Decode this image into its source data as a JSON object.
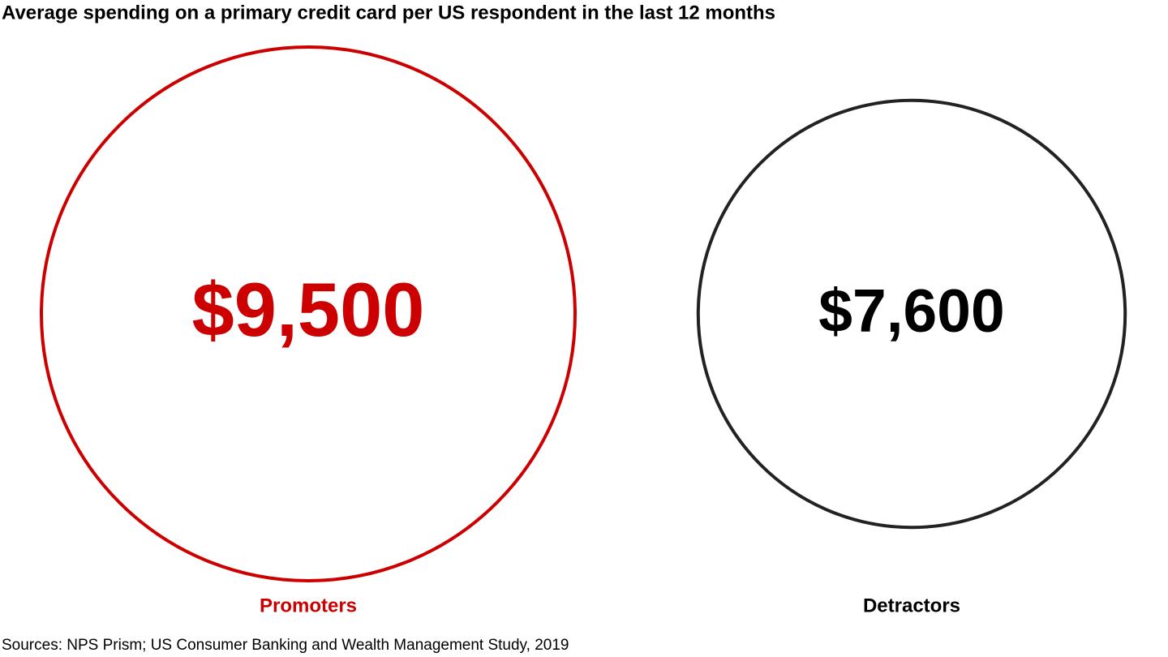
{
  "chart_data": {
    "type": "bubble",
    "title": "Average spending on a primary credit card per US respondent in the last 12 months",
    "categories": [
      "Promoters",
      "Detractors"
    ],
    "values": [
      9500,
      7600
    ],
    "value_labels": [
      "$9,500",
      "$7,600"
    ],
    "colors": [
      "#cc0000",
      "#222222"
    ],
    "source": "Sources: NPS Prism; US Consumer Banking and Wealth Management Study, 2019"
  }
}
